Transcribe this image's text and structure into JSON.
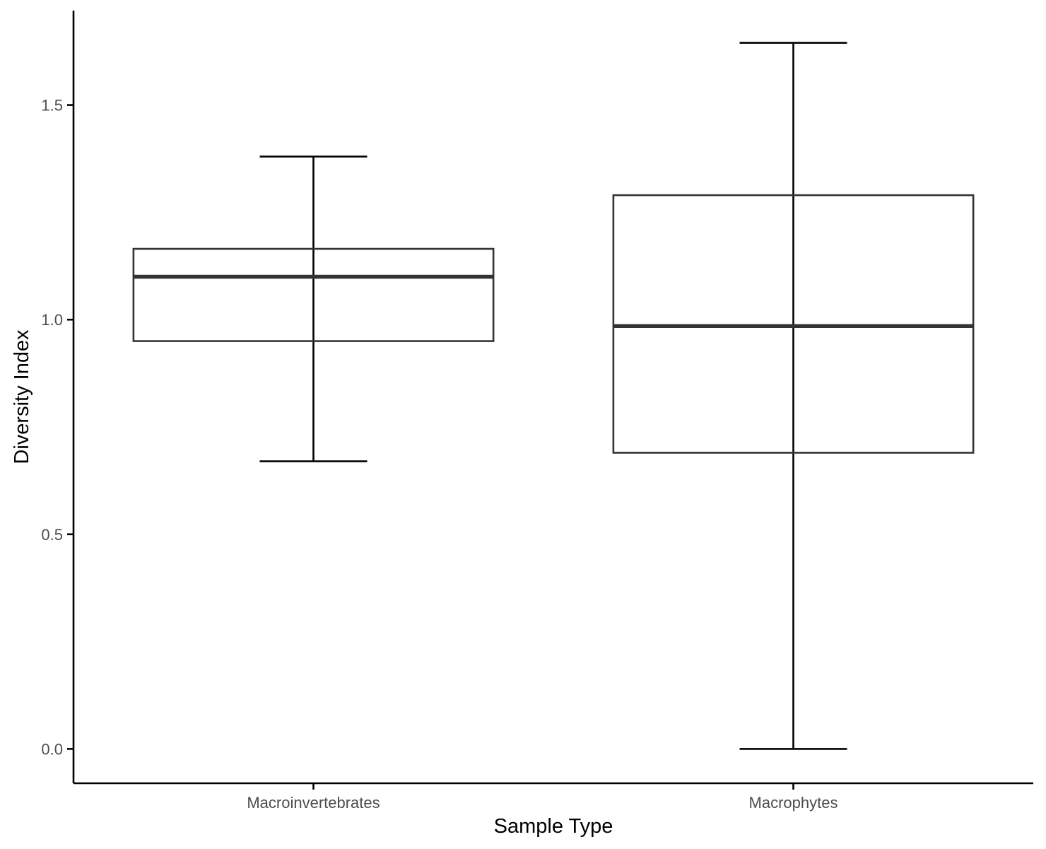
{
  "chart_data": {
    "type": "box",
    "title": "",
    "xlabel": "Sample Type",
    "ylabel": "Diversity Index",
    "categories": [
      "Macroinvertebrates",
      "Macrophytes"
    ],
    "boxes": [
      {
        "category": "Macroinvertebrates",
        "min": 0.67,
        "q1": 0.95,
        "median": 1.1,
        "q3": 1.165,
        "max": 1.38
      },
      {
        "category": "Macrophytes",
        "min": 0.0,
        "q1": 0.69,
        "median": 0.985,
        "q3": 1.29,
        "max": 1.645
      }
    ],
    "ylim": [
      -0.08,
      1.72
    ],
    "yticks": [
      0.0,
      0.5,
      1.0,
      1.5
    ],
    "ytick_labels": [
      "0.0",
      "0.5",
      "1.0",
      "1.5"
    ],
    "grid": false,
    "legend": "none",
    "colors": {
      "box_stroke": "#333333",
      "box_fill": "#ffffff",
      "median": "#333333",
      "whisker": "#000000",
      "axis": "#000000",
      "tick_label": "#4d4d4d"
    }
  }
}
